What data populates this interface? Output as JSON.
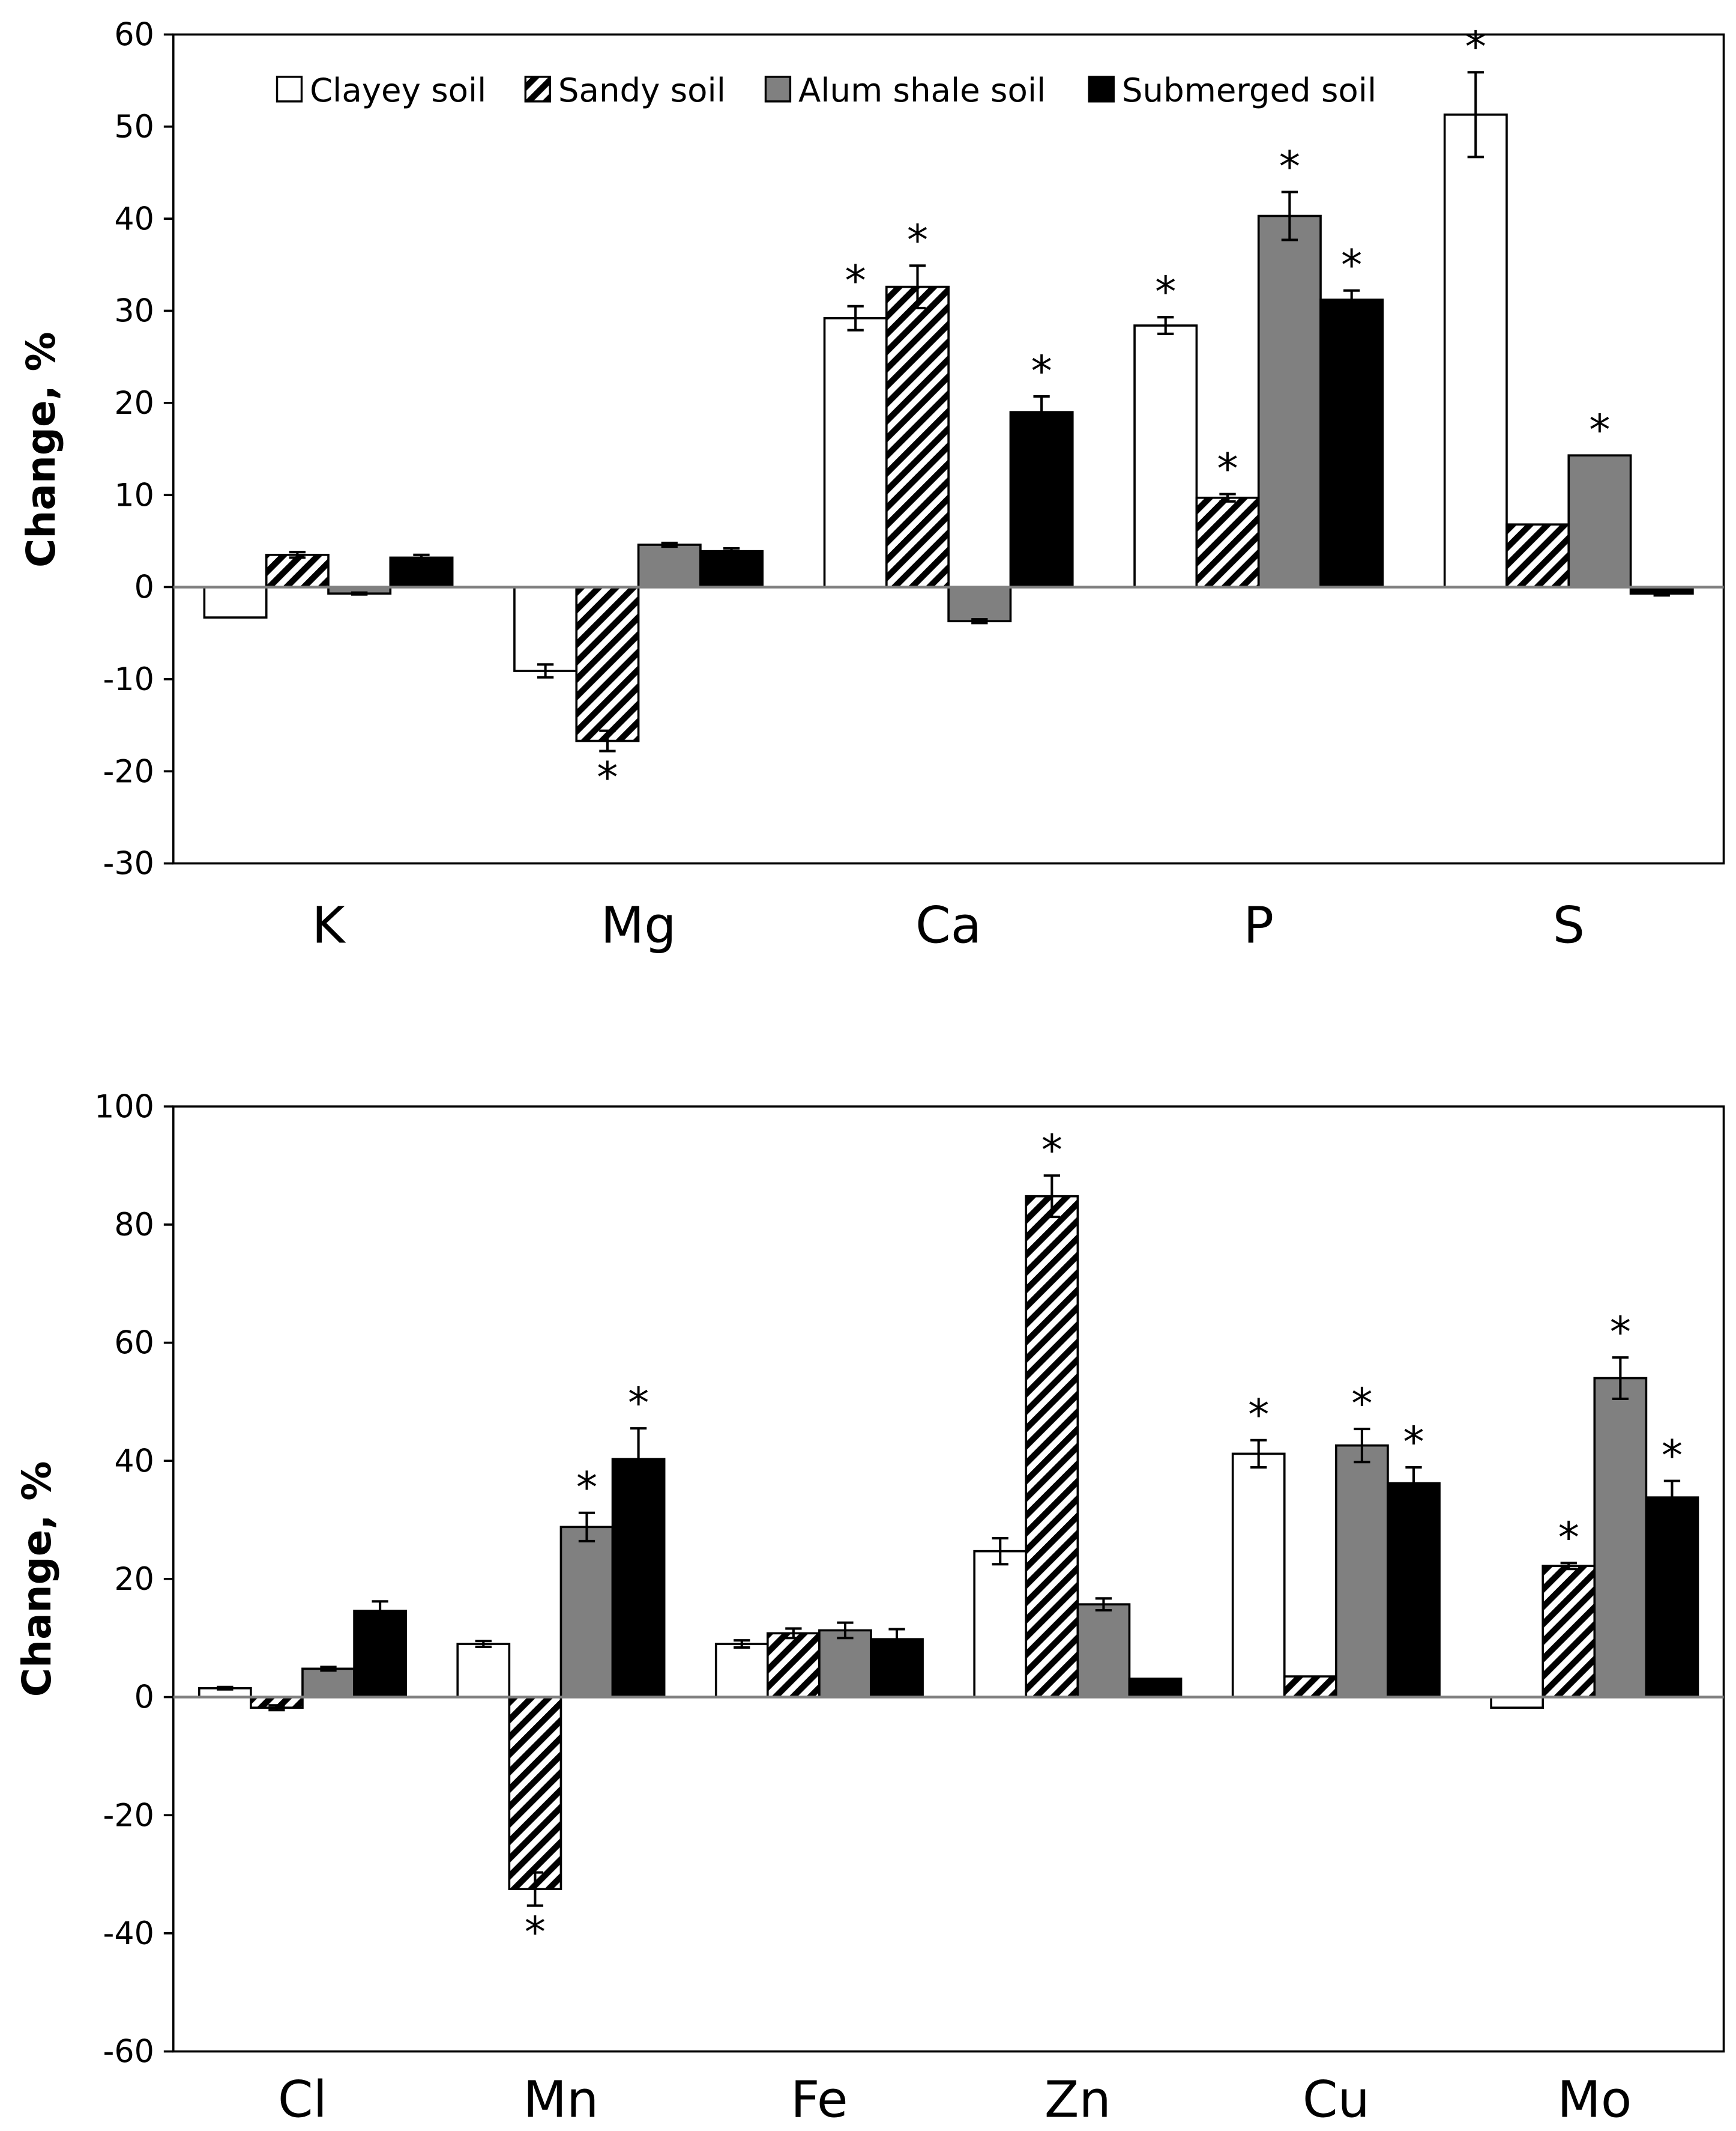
{
  "legend": [
    {
      "name": "Clayey soil",
      "pattern": "white"
    },
    {
      "name": "Sandy soil",
      "pattern": "hatch"
    },
    {
      "name": "Alum shale soil",
      "pattern": "gray"
    },
    {
      "name": "Submerged soil",
      "pattern": "black"
    }
  ],
  "colors": {
    "white": "#ffffff",
    "gray": "#808080",
    "black": "#000000",
    "hatch": "#000000",
    "zero_line": "#808080"
  },
  "chart_data": [
    {
      "type": "bar",
      "title": "",
      "xlabel": "",
      "ylabel": "Change, %",
      "ylim": [
        -30,
        60
      ],
      "yticks": [
        -30,
        -20,
        -10,
        0,
        10,
        20,
        30,
        40,
        50,
        60
      ],
      "grid": false,
      "legend_position": "top",
      "categories": [
        "K",
        "Mg",
        "Ca",
        "P",
        "S"
      ],
      "series": [
        {
          "name": "Clayey soil",
          "values": [
            -3.3,
            -9.1,
            29.2,
            28.4,
            51.3
          ],
          "errors": [
            0,
            0.7,
            1.3,
            0.9,
            4.6
          ],
          "significant": [
            false,
            false,
            true,
            true,
            true
          ]
        },
        {
          "name": "Sandy soil",
          "values": [
            3.5,
            -16.7,
            32.6,
            9.7,
            6.8
          ],
          "errors": [
            0.3,
            1.1,
            2.3,
            0.4,
            0
          ],
          "significant": [
            false,
            true,
            true,
            true,
            false
          ]
        },
        {
          "name": "Alum shale soil",
          "values": [
            -0.7,
            4.6,
            -3.7,
            40.3,
            14.3
          ],
          "errors": [
            0.1,
            0.2,
            0.2,
            2.6,
            0
          ],
          "significant": [
            false,
            false,
            false,
            true,
            true
          ]
        },
        {
          "name": "Submerged soil",
          "values": [
            3.2,
            3.9,
            19.0,
            31.2,
            -0.7
          ],
          "errors": [
            0.3,
            0.3,
            1.7,
            1.0,
            0.2
          ],
          "significant": [
            false,
            false,
            true,
            true,
            false
          ]
        }
      ]
    },
    {
      "type": "bar",
      "title": "",
      "xlabel": "",
      "ylabel": "Change, %",
      "ylim": [
        -60,
        100
      ],
      "yticks": [
        -60,
        -40,
        -20,
        0,
        20,
        40,
        60,
        80,
        100
      ],
      "grid": false,
      "categories": [
        "Cl",
        "Mn",
        "Fe",
        "Zn",
        "Cu",
        "Mo"
      ],
      "series": [
        {
          "name": "Clayey soil",
          "values": [
            1.5,
            9.0,
            9.0,
            24.7,
            41.2,
            -1.8
          ],
          "errors": [
            0.2,
            0.5,
            0.6,
            2.2,
            2.3,
            0
          ],
          "significant": [
            false,
            false,
            false,
            false,
            true,
            false
          ]
        },
        {
          "name": "Sandy soil",
          "values": [
            -1.8,
            -32.5,
            10.8,
            84.8,
            3.5,
            22.2
          ],
          "errors": [
            0.4,
            2.8,
            0.8,
            3.5,
            0,
            0.5
          ],
          "significant": [
            false,
            true,
            false,
            true,
            false,
            true
          ]
        },
        {
          "name": "Alum shale soil",
          "values": [
            4.8,
            28.8,
            11.3,
            15.7,
            42.6,
            54.0
          ],
          "errors": [
            0.3,
            2.4,
            1.3,
            1.0,
            2.8,
            3.5
          ],
          "significant": [
            false,
            true,
            false,
            false,
            true,
            true
          ]
        },
        {
          "name": "Submerged soil",
          "values": [
            14.6,
            40.3,
            9.8,
            3.1,
            36.2,
            33.8
          ],
          "errors": [
            1.6,
            5.2,
            1.7,
            0,
            2.7,
            2.8
          ],
          "significant": [
            false,
            true,
            false,
            false,
            true,
            true
          ]
        }
      ]
    }
  ]
}
